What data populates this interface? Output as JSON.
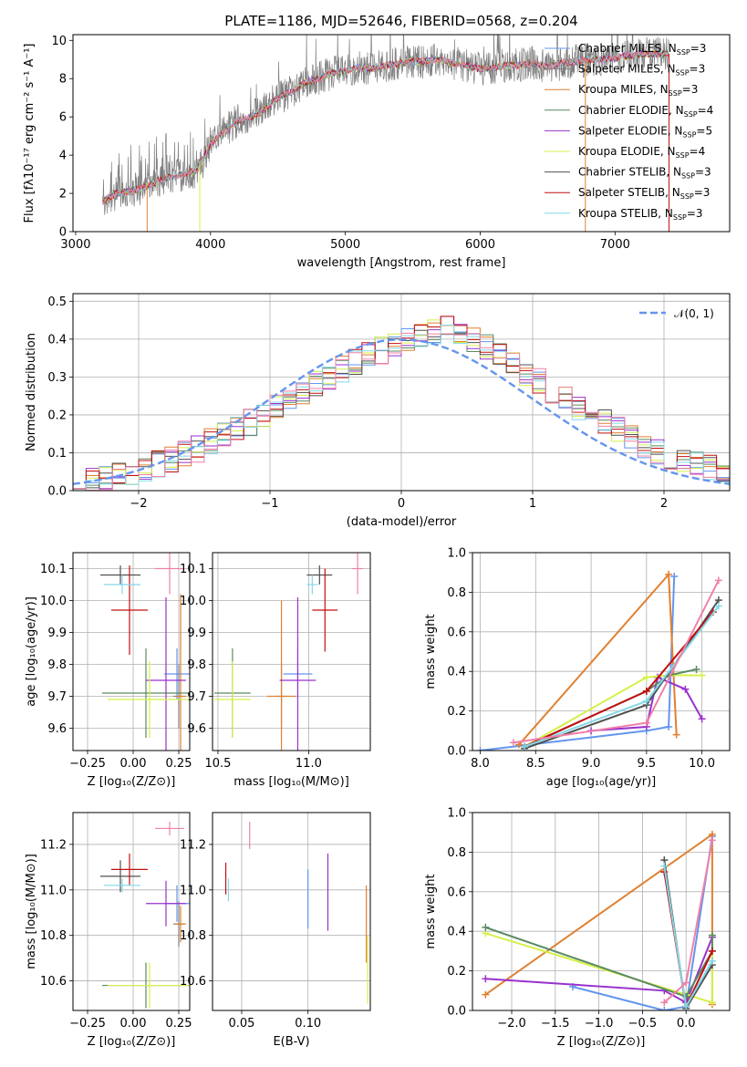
{
  "figure": {
    "title": "PLATE=1186, MJD=52646, FIBERID=0568, z=0.204"
  },
  "colors": [
    "#6495ed",
    "#7f7f7f",
    "#e08030",
    "#5a8a62",
    "#9932cc",
    "#d4f04a",
    "#505050",
    "#c01010",
    "#84d8e8",
    "#f080a8"
  ],
  "chart_data": [
    {
      "id": "spectrum",
      "type": "line",
      "xlabel": "wavelength [Angstrom, rest frame]",
      "ylabel": "Flux [fλ10⁻¹⁷ erg cm⁻² s⁻¹ A⁻¹]",
      "xlim": [
        2980,
        7850
      ],
      "ylim": [
        0,
        10.3
      ],
      "xticks": [
        3000,
        4000,
        5000,
        6000,
        7000
      ],
      "yticks": [
        0,
        2,
        4,
        6,
        8,
        10
      ],
      "grid": false,
      "legend_position": "upper right",
      "legend": [
        {
          "name": "Chabrier MILES, N",
          "sub": "SSP",
          "tail": "=3",
          "color": "#6495ed"
        },
        {
          "name": "Salpeter MILES, N",
          "sub": "SSP",
          "tail": "=3",
          "color": "#7f7f7f"
        },
        {
          "name": "Kroupa MILES, N",
          "sub": "SSP",
          "tail": "=3",
          "color": "#e08030"
        },
        {
          "name": "Chabrier ELODIE, N",
          "sub": "SSP",
          "tail": "=4",
          "color": "#5a8a62"
        },
        {
          "name": "Salpeter ELODIE, N",
          "sub": "SSP",
          "tail": "=5",
          "color": "#9932cc"
        },
        {
          "name": "Kroupa ELODIE, N",
          "sub": "SSP",
          "tail": "=4",
          "color": "#d4f04a"
        },
        {
          "name": "Chabrier STELIB, N",
          "sub": "SSP",
          "tail": "=3",
          "color": "#505050"
        },
        {
          "name": "Salpeter STELIB, N",
          "sub": "SSP",
          "tail": "=3",
          "color": "#c01010"
        },
        {
          "name": "Kroupa STELIB, N",
          "sub": "SSP",
          "tail": "=3",
          "color": "#84d8e8"
        }
      ],
      "continuum": [
        [
          3200,
          1.6
        ],
        [
          3300,
          2.0
        ],
        [
          3400,
          2.1
        ],
        [
          3500,
          2.3
        ],
        [
          3600,
          2.6
        ],
        [
          3700,
          2.9
        ],
        [
          3800,
          3.0
        ],
        [
          3900,
          3.2
        ],
        [
          4000,
          4.6
        ],
        [
          4100,
          5.2
        ],
        [
          4200,
          5.8
        ],
        [
          4300,
          6.0
        ],
        [
          4400,
          6.4
        ],
        [
          4500,
          7.0
        ],
        [
          4600,
          7.3
        ],
        [
          4700,
          7.8
        ],
        [
          4800,
          8.0
        ],
        [
          4900,
          8.3
        ],
        [
          5000,
          8.4
        ],
        [
          5100,
          8.6
        ],
        [
          5200,
          8.5
        ],
        [
          5300,
          8.7
        ],
        [
          5400,
          8.8
        ],
        [
          5500,
          8.9
        ],
        [
          5600,
          8.9
        ],
        [
          5700,
          9.0
        ],
        [
          5800,
          8.8
        ],
        [
          5900,
          8.7
        ],
        [
          6000,
          8.5
        ],
        [
          6100,
          8.6
        ],
        [
          6200,
          8.7
        ],
        [
          6300,
          8.7
        ],
        [
          6400,
          8.8
        ],
        [
          6500,
          8.6
        ],
        [
          6600,
          8.8
        ],
        [
          6700,
          8.9
        ],
        [
          6800,
          9.0
        ],
        [
          6900,
          9.0
        ],
        [
          7000,
          9.1
        ],
        [
          7100,
          9.2
        ],
        [
          7200,
          9.3
        ],
        [
          7300,
          9.3
        ],
        [
          7400,
          9.3
        ]
      ]
    },
    {
      "id": "residuals",
      "type": "area",
      "xlabel": "(data-model)/error",
      "ylabel": "Normed distribution",
      "xlim": [
        -2.5,
        2.5
      ],
      "ylim": [
        0,
        0.52
      ],
      "xticks": [
        -2,
        -1,
        0,
        1,
        2
      ],
      "xtick_labels": [
        "−2",
        "−1",
        "0",
        "1",
        "2"
      ],
      "yticks": [
        0.0,
        0.1,
        0.2,
        0.3,
        0.4,
        0.5
      ],
      "grid": true,
      "reference": {
        "label": "𝒩(0, 1)",
        "mean": 0,
        "sigma": 1,
        "color": "#6495ed"
      },
      "bin_width": 0.1,
      "histogram_base": [
        0.02,
        0.025,
        0.03,
        0.04,
        0.05,
        0.06,
        0.07,
        0.08,
        0.1,
        0.11,
        0.13,
        0.15,
        0.16,
        0.18,
        0.2,
        0.22,
        0.24,
        0.26,
        0.28,
        0.3,
        0.32,
        0.34,
        0.36,
        0.37,
        0.38,
        0.4,
        0.41,
        0.42,
        0.43,
        0.42,
        0.4,
        0.38,
        0.36,
        0.34,
        0.31,
        0.29,
        0.26,
        0.24,
        0.22,
        0.2,
        0.18,
        0.16,
        0.14,
        0.12,
        0.1,
        0.09,
        0.08,
        0.07,
        0.06,
        0.05
      ]
    },
    {
      "id": "age-vs-Z",
      "type": "scatter",
      "xlabel": "Z [log₁₀(Z/Z⊙)]",
      "ylabel": "age  [log₁₀(age/yr)]",
      "xlim": [
        -0.33,
        0.31
      ],
      "ylim": [
        9.53,
        10.15
      ],
      "xticks": [
        -0.25,
        0.0,
        0.25
      ],
      "xtick_labels": [
        "−0.25",
        "0.00",
        "0.25"
      ],
      "yticks": [
        9.6,
        9.7,
        9.8,
        9.9,
        10.0,
        10.1
      ],
      "grid": true,
      "points": [
        {
          "x": 0.24,
          "xerr": 0.07,
          "y": 9.77,
          "yerr": 0.08,
          "color": "#6495ed"
        },
        {
          "x": 0.25,
          "xerr": 0.03,
          "y": 9.7,
          "yerr": 0.1,
          "color": "#7f7f7f"
        },
        {
          "x": 0.26,
          "xerr": 0.03,
          "y": 9.7,
          "yerr": 0.32,
          "color": "#e08030"
        },
        {
          "x": 0.07,
          "xerr": 0.24,
          "y": 9.71,
          "yerr": 0.14,
          "color": "#5a8a62"
        },
        {
          "x": 0.18,
          "xerr": 0.11,
          "y": 9.75,
          "yerr": 0.26,
          "color": "#9932cc"
        },
        {
          "x": 0.09,
          "xerr": 0.23,
          "y": 9.69,
          "yerr": 0.12,
          "color": "#d4f04a"
        },
        {
          "x": -0.07,
          "xerr": 0.11,
          "y": 10.08,
          "yerr": 0.03,
          "color": "#505050"
        },
        {
          "x": -0.02,
          "xerr": 0.1,
          "y": 9.97,
          "yerr": 0.14,
          "color": "#c01010"
        },
        {
          "x": -0.06,
          "xerr": 0.1,
          "y": 10.05,
          "yerr": 0.03,
          "color": "#84d8e8"
        },
        {
          "x": 0.2,
          "xerr": 0.08,
          "y": 10.1,
          "yerr": 0.08,
          "color": "#f080a8"
        }
      ]
    },
    {
      "id": "age-vs-mass",
      "type": "scatter",
      "xlabel": "mass [log₁₀(M/M⊙)]",
      "ylabel": "",
      "xlim": [
        10.47,
        11.34
      ],
      "ylim": [
        9.53,
        10.15
      ],
      "xticks": [
        10.5,
        11.0
      ],
      "yticks": [
        9.6,
        9.7,
        9.8,
        9.9,
        10.0,
        10.1
      ],
      "grid": true,
      "points": [
        {
          "x": 10.94,
          "xerr": 0.08,
          "y": 9.77,
          "yerr": 0.08,
          "color": "#6495ed"
        },
        {
          "x": 10.85,
          "xerr": 0.03,
          "y": 9.7,
          "yerr": 0.1,
          "color": "#7f7f7f"
        },
        {
          "x": 10.85,
          "xerr": 0.08,
          "y": 9.7,
          "yerr": 0.3,
          "color": "#e08030"
        },
        {
          "x": 10.58,
          "xerr": 0.1,
          "y": 9.71,
          "yerr": 0.14,
          "color": "#5a8a62"
        },
        {
          "x": 10.94,
          "xerr": 0.1,
          "y": 9.75,
          "yerr": 0.26,
          "color": "#9932cc"
        },
        {
          "x": 10.58,
          "xerr": 0.1,
          "y": 9.69,
          "yerr": 0.12,
          "color": "#d4f04a"
        },
        {
          "x": 11.06,
          "xerr": 0.07,
          "y": 10.08,
          "yerr": 0.03,
          "color": "#505050"
        },
        {
          "x": 11.09,
          "xerr": 0.07,
          "y": 9.97,
          "yerr": 0.13,
          "color": "#c01010"
        },
        {
          "x": 11.02,
          "xerr": 0.03,
          "y": 10.05,
          "yerr": 0.03,
          "color": "#84d8e8"
        },
        {
          "x": 11.27,
          "xerr": 0.03,
          "y": 10.1,
          "yerr": 0.08,
          "color": "#f080a8"
        }
      ]
    },
    {
      "id": "weight-vs-age",
      "type": "line",
      "xlabel": "age  [log₁₀(age/yr)]",
      "ylabel": "mass weight",
      "xlim": [
        7.93,
        10.25
      ],
      "ylim": [
        0,
        1.0
      ],
      "xticks": [
        8.0,
        8.5,
        9.0,
        9.5,
        10.0
      ],
      "yticks": [
        0.0,
        0.2,
        0.4,
        0.6,
        0.8,
        1.0
      ],
      "grid": true,
      "series": [
        {
          "color": "#6495ed",
          "x": [
            8.0,
            9.5,
            9.7,
            9.75
          ],
          "y": [
            0.0,
            0.1,
            0.12,
            0.88
          ]
        },
        {
          "color": "#e08030",
          "x": [
            8.35,
            9.7,
            9.77
          ],
          "y": [
            0.03,
            0.89,
            0.08
          ]
        },
        {
          "color": "#9932cc",
          "x": [
            9.0,
            9.5,
            9.6,
            9.85,
            10.0
          ],
          "y": [
            0.1,
            0.12,
            0.37,
            0.31,
            0.16
          ]
        },
        {
          "color": "#d4f04a",
          "x": [
            8.4,
            9.5,
            9.7,
            10.0
          ],
          "y": [
            0.02,
            0.37,
            0.38,
            0.38
          ]
        },
        {
          "color": "#5a8a62",
          "x": [
            8.4,
            9.5,
            9.7,
            9.95
          ],
          "y": [
            0.02,
            0.3,
            0.38,
            0.41
          ]
        },
        {
          "color": "#505050",
          "x": [
            8.4,
            9.5,
            10.15
          ],
          "y": [
            0.01,
            0.23,
            0.76
          ]
        },
        {
          "color": "#c01010",
          "x": [
            8.4,
            9.5,
            10.1
          ],
          "y": [
            0.02,
            0.3,
            0.7
          ]
        },
        {
          "color": "#84d8e8",
          "x": [
            8.4,
            9.5,
            10.15
          ],
          "y": [
            0.02,
            0.25,
            0.73
          ]
        },
        {
          "color": "#f080a8",
          "x": [
            8.3,
            9.5,
            10.15
          ],
          "y": [
            0.04,
            0.14,
            0.86
          ]
        }
      ]
    },
    {
      "id": "mass-vs-Z",
      "type": "scatter",
      "xlabel": "Z [log₁₀(Z/Z⊙)]",
      "ylabel": "mass [log₁₀(M/M⊙)]",
      "xlim": [
        -0.33,
        0.31
      ],
      "ylim": [
        10.47,
        11.34
      ],
      "xticks": [
        -0.25,
        0.0,
        0.25
      ],
      "xtick_labels": [
        "−0.25",
        "0.00",
        "0.25"
      ],
      "yticks": [
        10.6,
        10.8,
        11.0,
        11.2
      ],
      "grid": true,
      "points": [
        {
          "x": 0.24,
          "xerr": 0.07,
          "y": 10.94,
          "yerr": 0.08,
          "color": "#6495ed"
        },
        {
          "x": 0.25,
          "xerr": 0.03,
          "y": 10.85,
          "yerr": 0.1,
          "color": "#7f7f7f"
        },
        {
          "x": 0.26,
          "xerr": 0.03,
          "y": 10.85,
          "yerr": 0.08,
          "color": "#e08030"
        },
        {
          "x": 0.07,
          "xerr": 0.24,
          "y": 10.58,
          "yerr": 0.1,
          "color": "#5a8a62"
        },
        {
          "x": 0.18,
          "xerr": 0.11,
          "y": 10.94,
          "yerr": 0.1,
          "color": "#9932cc"
        },
        {
          "x": 0.09,
          "xerr": 0.23,
          "y": 10.58,
          "yerr": 0.1,
          "color": "#d4f04a"
        },
        {
          "x": -0.07,
          "xerr": 0.11,
          "y": 11.06,
          "yerr": 0.07,
          "color": "#505050"
        },
        {
          "x": -0.02,
          "xerr": 0.1,
          "y": 11.09,
          "yerr": 0.07,
          "color": "#c01010"
        },
        {
          "x": -0.06,
          "xerr": 0.1,
          "y": 11.02,
          "yerr": 0.03,
          "color": "#84d8e8"
        },
        {
          "x": 0.2,
          "xerr": 0.08,
          "y": 11.27,
          "yerr": 0.03,
          "color": "#f080a8"
        }
      ]
    },
    {
      "id": "mass-vs-EBV",
      "type": "scatter",
      "xlabel": "E(B-V)",
      "ylabel": "",
      "xlim": [
        0.028,
        0.147
      ],
      "ylim": [
        10.47,
        11.34
      ],
      "xticks": [
        0.05,
        0.1
      ],
      "xtick_labels": [
        "0.05",
        "0.10"
      ],
      "yticks": [
        10.6,
        10.8,
        11.0,
        11.2
      ],
      "grid": true,
      "points": [
        {
          "x": 0.1,
          "y": 10.96,
          "yerr": 0.13,
          "color": "#6495ed"
        },
        {
          "x": 0.038,
          "y": 11.05,
          "yerr": 0.07,
          "color": "#c01010"
        },
        {
          "x": 0.04,
          "y": 11.0,
          "yerr": 0.05,
          "color": "#84d8e8"
        },
        {
          "x": 0.056,
          "y": 11.24,
          "yerr": 0.06,
          "color": "#f080a8"
        },
        {
          "x": 0.115,
          "y": 10.99,
          "yerr": 0.17,
          "color": "#9932cc"
        },
        {
          "x": 0.144,
          "y": 10.85,
          "yerr": 0.17,
          "color": "#e08030"
        },
        {
          "x": 0.145,
          "y": 10.65,
          "yerr": 0.15,
          "color": "#d4f04a"
        }
      ]
    },
    {
      "id": "weight-vs-Z",
      "type": "line",
      "xlabel": "Z [log₁₀(Z/Z⊙)]",
      "ylabel": "mass weight",
      "xlim": [
        -2.45,
        0.5
      ],
      "ylim": [
        0,
        1.0
      ],
      "xticks": [
        -2.0,
        -1.5,
        -1.0,
        -0.5,
        0.0
      ],
      "xtick_labels": [
        "−2.0",
        "−1.5",
        "−1.0",
        "−0.5",
        "0.0"
      ],
      "yticks": [
        0.0,
        0.2,
        0.4,
        0.6,
        0.8,
        1.0
      ],
      "grid": true,
      "series": [
        {
          "color": "#6495ed",
          "x": [
            -1.3,
            -0.25,
            0.0,
            0.3
          ],
          "y": [
            0.12,
            0.0,
            0.02,
            0.88
          ]
        },
        {
          "color": "#e08030",
          "x": [
            -2.3,
            0.3,
            0.3
          ],
          "y": [
            0.08,
            0.89,
            0.03
          ]
        },
        {
          "color": "#9932cc",
          "x": [
            -2.3,
            -0.25,
            0.0,
            0.3
          ],
          "y": [
            0.16,
            0.1,
            0.04,
            0.37
          ]
        },
        {
          "color": "#d4f04a",
          "x": [
            -2.3,
            0.0,
            0.3,
            0.3
          ],
          "y": [
            0.39,
            0.08,
            0.04,
            0.38
          ]
        },
        {
          "color": "#5a8a62",
          "x": [
            -2.3,
            0.0,
            0.3,
            0.3
          ],
          "y": [
            0.42,
            0.07,
            0.3,
            0.38
          ]
        },
        {
          "color": "#505050",
          "x": [
            -0.25,
            0.0,
            0.3
          ],
          "y": [
            0.76,
            0.01,
            0.23
          ]
        },
        {
          "color": "#c01010",
          "x": [
            -0.25,
            0.0,
            0.3
          ],
          "y": [
            0.7,
            0.02,
            0.3
          ]
        },
        {
          "color": "#84d8e8",
          "x": [
            -0.25,
            0.0,
            0.3
          ],
          "y": [
            0.73,
            0.02,
            0.25
          ]
        },
        {
          "color": "#f080a8",
          "x": [
            -0.25,
            0.0,
            0.3
          ],
          "y": [
            0.04,
            0.14,
            0.86
          ]
        }
      ]
    }
  ]
}
